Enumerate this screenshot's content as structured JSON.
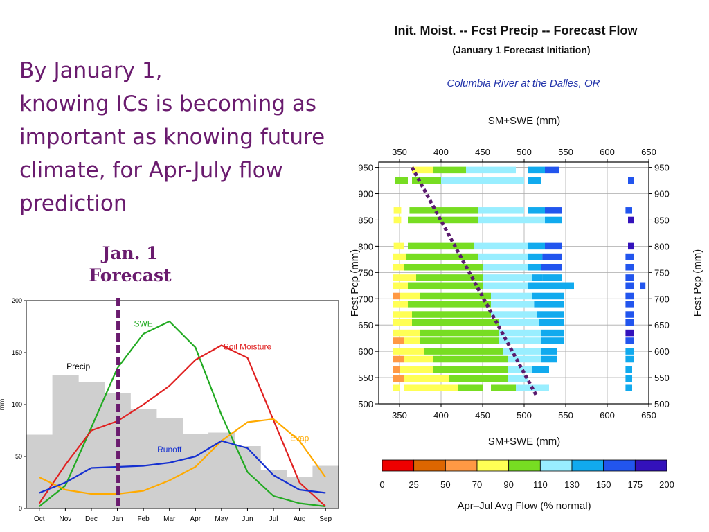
{
  "slide": {
    "headline_lines": [
      "By January 1,",
      "knowing ICs is becoming as",
      "important as knowing future",
      "climate, for Apr-July flow",
      "prediction"
    ],
    "forecast_label_lines": [
      "Jan. 1",
      "Forecast"
    ],
    "accent_color": "#6a1b6e"
  },
  "chart_data": [
    {
      "type": "line",
      "ylabel": "mm",
      "ylim": [
        0,
        200
      ],
      "yticks": [
        0,
        50,
        100,
        150,
        200
      ],
      "categories": [
        "Oct",
        "Nov",
        "Dec",
        "Jan",
        "Feb",
        "Mar",
        "Apr",
        "May",
        "Jun",
        "Jul",
        "Aug",
        "Sep"
      ],
      "precip_bars": {
        "name": "Precip",
        "color": "#cfcfcf",
        "values": [
          71,
          128,
          122,
          111,
          96,
          87,
          72,
          73,
          60,
          37,
          30,
          41
        ]
      },
      "series": [
        {
          "name": "SWE",
          "color": "#22aa22",
          "values": [
            2,
            22,
            78,
            135,
            168,
            180,
            155,
            90,
            35,
            12,
            5,
            2
          ]
        },
        {
          "name": "Soil Moisture",
          "color": "#e02020",
          "values": [
            5,
            42,
            75,
            84,
            100,
            118,
            143,
            157,
            145,
            85,
            25,
            2
          ]
        },
        {
          "name": "Evap",
          "color": "#ffaa00",
          "values": [
            30,
            18,
            14,
            14,
            17,
            27,
            40,
            65,
            83,
            86,
            65,
            30
          ]
        },
        {
          "name": "Runoff",
          "color": "#1530d0",
          "values": [
            15,
            25,
            39,
            40,
            41,
            44,
            50,
            65,
            58,
            32,
            18,
            15
          ]
        }
      ],
      "series_label_colors": {
        "Precip": "#000000"
      },
      "marker": {
        "category": "Jan",
        "color": "#6a1b6e"
      }
    },
    {
      "type": "scatter",
      "title": "Init. Moist. -- Fcst Precip -- Forecast Flow",
      "subtitle": "(January 1 Forecast Initiation)",
      "location": "Columbia River at the Dalles, OR",
      "location_color": "#2233aa",
      "xlabel": "SM+SWE (mm)",
      "ylabel": "Fcst Pcp (mm)",
      "xlim": [
        325,
        650
      ],
      "xticks": [
        350,
        400,
        450,
        500,
        550,
        600,
        650
      ],
      "ylim": [
        500,
        960
      ],
      "yticks": [
        500,
        550,
        600,
        650,
        700,
        750,
        800,
        850,
        900,
        950
      ],
      "rows": [
        {
          "y": 945,
          "segments": [
            [
              365,
              390,
              70
            ],
            [
              390,
              430,
              90
            ],
            [
              430,
              460,
              110
            ],
            [
              460,
              490,
              110
            ],
            [
              505,
              525,
              130
            ],
            [
              525,
              542,
              150
            ]
          ]
        },
        {
          "y": 925,
          "segments": [
            [
              345,
              360,
              90
            ],
            [
              365,
              400,
              90
            ],
            [
              400,
              470,
              110
            ],
            [
              470,
              500,
              110
            ],
            [
              505,
              520,
              130
            ],
            [
              625,
              632,
              150
            ]
          ]
        },
        {
          "y": 868,
          "segments": [
            [
              343,
              352,
              70
            ],
            [
              362,
              375,
              90
            ],
            [
              375,
              445,
              90
            ],
            [
              445,
              500,
              110
            ],
            [
              505,
              525,
              130
            ],
            [
              525,
              545,
              150
            ],
            [
              622,
              630,
              150
            ]
          ]
        },
        {
          "y": 850,
          "segments": [
            [
              343,
              352,
              70
            ],
            [
              360,
              445,
              90
            ],
            [
              445,
              505,
              110
            ],
            [
              505,
              525,
              110
            ],
            [
              525,
              545,
              130
            ],
            [
              625,
              632,
              175
            ]
          ]
        },
        {
          "y": 800,
          "segments": [
            [
              343,
              355,
              70
            ],
            [
              360,
              440,
              90
            ],
            [
              440,
              505,
              110
            ],
            [
              505,
              525,
              130
            ],
            [
              525,
              545,
              150
            ],
            [
              625,
              632,
              175
            ]
          ]
        },
        {
          "y": 780,
          "segments": [
            [
              342,
              358,
              70
            ],
            [
              358,
              445,
              90
            ],
            [
              445,
              505,
              110
            ],
            [
              505,
              522,
              130
            ],
            [
              522,
              545,
              150
            ],
            [
              622,
              632,
              150
            ]
          ]
        },
        {
          "y": 760,
          "segments": [
            [
              342,
              355,
              70
            ],
            [
              355,
              372,
              90
            ],
            [
              372,
              450,
              90
            ],
            [
              450,
              505,
              110
            ],
            [
              505,
              520,
              130
            ],
            [
              520,
              545,
              150
            ],
            [
              622,
              632,
              150
            ]
          ]
        },
        {
          "y": 740,
          "segments": [
            [
              342,
              355,
              70
            ],
            [
              355,
              370,
              70
            ],
            [
              370,
              450,
              90
            ],
            [
              450,
              510,
              110
            ],
            [
              510,
              522,
              130
            ],
            [
              522,
              545,
              130
            ],
            [
              622,
              632,
              150
            ]
          ]
        },
        {
          "y": 725,
          "segments": [
            [
              342,
              360,
              70
            ],
            [
              360,
              450,
              90
            ],
            [
              450,
              505,
              110
            ],
            [
              505,
              545,
              130
            ],
            [
              545,
              560,
              130
            ],
            [
              622,
              632,
              150
            ],
            [
              640,
              646,
              150
            ]
          ]
        },
        {
          "y": 705,
          "segments": [
            [
              342,
              350,
              50
            ],
            [
              350,
              375,
              70
            ],
            [
              375,
              460,
              90
            ],
            [
              460,
              510,
              110
            ],
            [
              510,
              548,
              130
            ],
            [
              622,
              632,
              150
            ]
          ]
        },
        {
          "y": 690,
          "segments": [
            [
              342,
              360,
              70
            ],
            [
              360,
              460,
              90
            ],
            [
              460,
              512,
              110
            ],
            [
              512,
              548,
              130
            ],
            [
              622,
              632,
              150
            ]
          ]
        },
        {
          "y": 670,
          "segments": [
            [
              342,
              365,
              70
            ],
            [
              365,
              460,
              90
            ],
            [
              460,
              515,
              110
            ],
            [
              515,
              548,
              130
            ],
            [
              622,
              632,
              150
            ]
          ]
        },
        {
          "y": 655,
          "segments": [
            [
              342,
              365,
              70
            ],
            [
              365,
              470,
              90
            ],
            [
              470,
              518,
              110
            ],
            [
              518,
              548,
              130
            ],
            [
              622,
              632,
              150
            ]
          ]
        },
        {
          "y": 635,
          "segments": [
            [
              342,
              360,
              70
            ],
            [
              360,
              375,
              70
            ],
            [
              375,
              470,
              90
            ],
            [
              470,
              520,
              110
            ],
            [
              520,
              548,
              130
            ],
            [
              622,
              632,
              175
            ]
          ]
        },
        {
          "y": 620,
          "segments": [
            [
              342,
              355,
              50
            ],
            [
              355,
              375,
              70
            ],
            [
              375,
              470,
              90
            ],
            [
              470,
              520,
              110
            ],
            [
              520,
              548,
              130
            ],
            [
              622,
              632,
              150
            ]
          ]
        },
        {
          "y": 600,
          "segments": [
            [
              342,
              380,
              70
            ],
            [
              380,
              475,
              90
            ],
            [
              475,
              520,
              110
            ],
            [
              520,
              540,
              130
            ],
            [
              622,
              632,
              130
            ]
          ]
        },
        {
          "y": 585,
          "segments": [
            [
              342,
              355,
              50
            ],
            [
              355,
              390,
              70
            ],
            [
              390,
              480,
              90
            ],
            [
              480,
              520,
              110
            ],
            [
              520,
              540,
              130
            ],
            [
              622,
              632,
              130
            ]
          ]
        },
        {
          "y": 565,
          "segments": [
            [
              342,
              350,
              50
            ],
            [
              350,
              390,
              70
            ],
            [
              390,
              480,
              90
            ],
            [
              480,
              510,
              110
            ],
            [
              510,
              530,
              130
            ],
            [
              622,
              630,
              130
            ]
          ]
        },
        {
          "y": 548,
          "segments": [
            [
              342,
              355,
              50
            ],
            [
              355,
              410,
              70
            ],
            [
              410,
              480,
              90
            ],
            [
              480,
              505,
              110
            ],
            [
              622,
              630,
              130
            ]
          ]
        },
        {
          "y": 530,
          "segments": [
            [
              342,
              350,
              70
            ],
            [
              355,
              420,
              70
            ],
            [
              420,
              450,
              90
            ],
            [
              460,
              490,
              90
            ],
            [
              490,
              530,
              110
            ],
            [
              622,
              630,
              130
            ]
          ]
        }
      ],
      "diagonal": {
        "from": [
          365,
          950
        ],
        "to": [
          515,
          515
        ],
        "color": "#5a1a6e"
      },
      "colorbar": {
        "label": "Apr–Jul Avg Flow (% normal)",
        "ticks": [
          "0",
          "25",
          "50",
          "70",
          "90",
          "110",
          "130",
          "150",
          "175",
          "200"
        ],
        "bins": [
          {
            "min": 0,
            "color": "#ee0000"
          },
          {
            "min": 25,
            "color": "#dd6600"
          },
          {
            "min": 50,
            "color": "#ff9944"
          },
          {
            "min": 70,
            "color": "#ffff55"
          },
          {
            "min": 90,
            "color": "#77dd22"
          },
          {
            "min": 110,
            "color": "#99eeff"
          },
          {
            "min": 130,
            "color": "#11aaee"
          },
          {
            "min": 150,
            "color": "#2255ee"
          },
          {
            "min": 175,
            "color": "#3311bb"
          }
        ]
      }
    }
  ]
}
